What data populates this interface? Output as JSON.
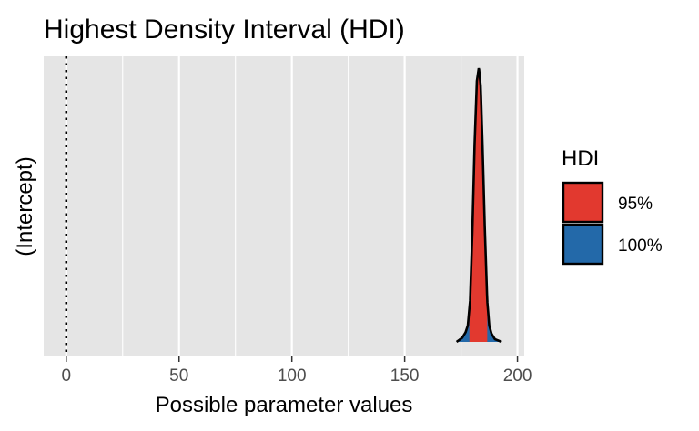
{
  "chart_data": {
    "type": "area",
    "title": "Highest Density Interval (HDI)",
    "xlabel": "Possible parameter values",
    "ylabel": "(Intercept)",
    "xlim": [
      -10,
      203
    ],
    "x_ticks": [
      0,
      50,
      100,
      150,
      200
    ],
    "x_tick_labels": [
      "0",
      "50",
      "100",
      "150",
      "200"
    ],
    "reference_line_x": 0,
    "grid": true,
    "legend": {
      "title": "HDI",
      "position": "right",
      "entries": [
        {
          "label": "95%",
          "color": "#E2392F"
        },
        {
          "label": "100%",
          "color": "#2369A9"
        }
      ]
    },
    "hdi_95": [
      178.7,
      186.6
    ],
    "hdi_100": [
      173.0,
      193.0
    ],
    "density_curve": {
      "x": [
        173.0,
        175.5,
        177.0,
        178.0,
        179.0,
        180.0,
        181.0,
        182.0,
        182.9,
        183.7,
        184.5,
        185.5,
        186.6,
        187.5,
        188.5,
        190.0,
        193.0
      ],
      "y": [
        0.0,
        0.015,
        0.035,
        0.06,
        0.15,
        0.4,
        0.72,
        0.95,
        1.0,
        0.93,
        0.72,
        0.42,
        0.15,
        0.06,
        0.03,
        0.01,
        0.0
      ]
    },
    "colors": {
      "panel_background": "#E5E5E5",
      "grid_line": "#FFFFFF",
      "hdi_95": "#E2392F",
      "hdi_100": "#2369A9",
      "outline": "#000000"
    }
  }
}
